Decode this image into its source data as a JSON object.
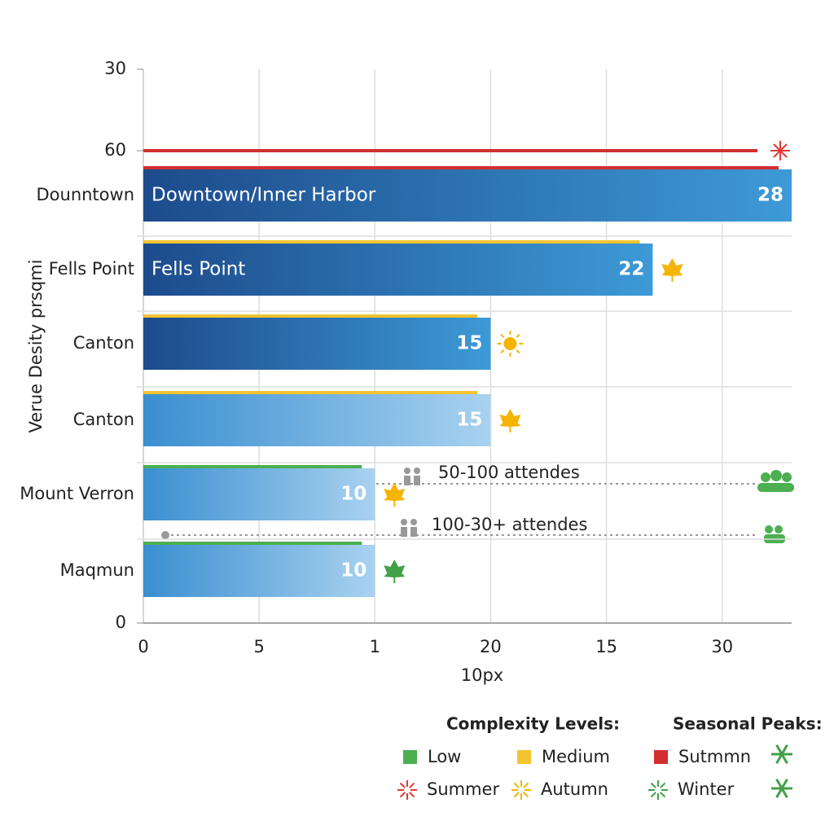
{
  "chart_data": {
    "type": "bar",
    "y_axis_label": "Verue Desity prsqmi",
    "x_axis_label": "10px",
    "left_labels": [
      "30",
      "60",
      "0"
    ],
    "categories": [
      "Dounntown",
      "Fells Point",
      "Canton",
      "Canton",
      "Mount Verron",
      "Maqmun"
    ],
    "bar_names": [
      "Downtown/Inner Harbor",
      "Fells Point",
      null,
      null,
      null,
      null
    ],
    "values": [
      28,
      22,
      15,
      15,
      10,
      10
    ],
    "complexity_colors": [
      "#d32f2f",
      "#f4c430",
      "#f4c430",
      "#f4c430",
      "#4caf50",
      "#4caf50"
    ],
    "xlim": [
      0,
      28
    ],
    "xticks": [
      0,
      5,
      {
        "value": 10,
        "label": "1"
      },
      {
        "value": 15,
        "label": "20"
      },
      {
        "value": 20,
        "label": "15"
      },
      {
        "value": 25,
        "label": "30"
      }
    ],
    "grid": true,
    "annotations": [
      "50-100 attendes",
      "100-30+ attendes"
    ],
    "legend": {
      "complexity_title": "Complexity Levels:",
      "seasonal_title": "Seasonal Peaks:",
      "items": [
        {
          "name": "Low",
          "color": "#4caf50"
        },
        {
          "name": "Medium",
          "color": "#f4c430"
        },
        {
          "name": "Sutmmn",
          "color": "#d32f2f"
        },
        {
          "name": "Summer",
          "color": "#e53935"
        },
        {
          "name": "Autumn",
          "color": "#f4b400"
        },
        {
          "name": "Winter",
          "color": "#43a047"
        }
      ]
    }
  }
}
